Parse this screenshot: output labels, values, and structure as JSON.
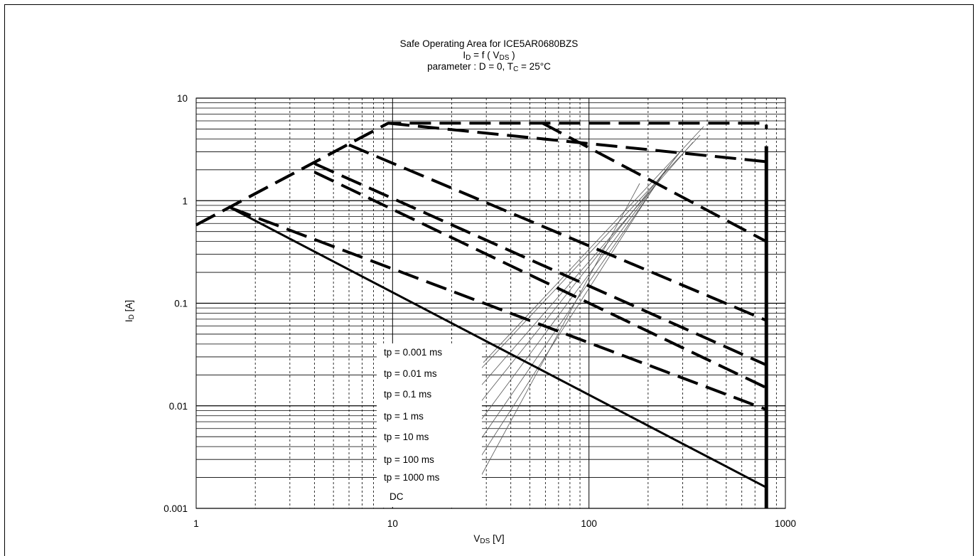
{
  "chart_data": {
    "type": "line",
    "title_line1": "Safe Operating Area for ICE5AR0680BZS",
    "title_line2_main": "I",
    "title_line2_sub": "D",
    "title_line2_mid": " = f ( V",
    "title_line2_sub2": "DS",
    "title_line2_end": " )",
    "title_line3_main": "parameter : D = 0, T",
    "title_line3_sub": "C",
    "title_line3_end": " = 25°C",
    "ylabel_main": "I",
    "ylabel_sub": "D",
    "ylabel_end": " [A]",
    "xlabel_main": "V",
    "xlabel_sub": "DS",
    "xlabel_end": " [V]",
    "x_scale": "log",
    "y_scale": "log",
    "xlim": [
      1,
      1000
    ],
    "ylim": [
      0.001,
      10
    ],
    "x_ticks": [
      "1",
      "10",
      "100",
      "1000"
    ],
    "y_ticks": [
      "0.001",
      "0.01",
      "0.1",
      "1",
      "10"
    ],
    "grid": true,
    "legend_labels": [
      "tp = 0.001 ms",
      "tp = 0.01 ms",
      "tp = 0.1 ms",
      "tp = 1 ms",
      "tp = 10 ms",
      "tp = 100 ms",
      "tp = 1000 ms",
      "DC"
    ],
    "series": [
      {
        "style": "dashed",
        "points": [
          [
            1,
            0.58
          ],
          [
            9.5,
            5.7
          ],
          [
            800,
            5.7
          ],
          [
            800,
            5.0
          ]
        ]
      },
      {
        "style": "dashed",
        "points": [
          [
            1,
            0.58
          ],
          [
            9.5,
            5.7
          ]
        ]
      },
      {
        "style": "dashed",
        "points": [
          [
            9.5,
            5.7
          ],
          [
            800,
            2.4
          ]
        ]
      },
      {
        "style": "dashed",
        "points": [
          [
            58,
            5.7
          ],
          [
            800,
            0.4
          ]
        ]
      },
      {
        "style": "dashed",
        "points": [
          [
            6,
            3.5
          ],
          [
            800,
            0.068
          ]
        ]
      },
      {
        "style": "dashed",
        "points": [
          [
            4,
            2.3
          ],
          [
            800,
            0.025
          ]
        ]
      },
      {
        "style": "dashed",
        "points": [
          [
            4,
            1.9
          ],
          [
            800,
            0.015
          ]
        ]
      },
      {
        "style": "dashed",
        "points": [
          [
            1.5,
            0.85
          ],
          [
            800,
            0.0092
          ]
        ]
      },
      {
        "style": "solid",
        "points": [
          [
            1.5,
            0.85
          ],
          [
            800,
            0.0016
          ]
        ]
      },
      {
        "style": "solid-thick",
        "points": [
          [
            800,
            0.001
          ],
          [
            800,
            3.4
          ]
        ]
      }
    ]
  }
}
